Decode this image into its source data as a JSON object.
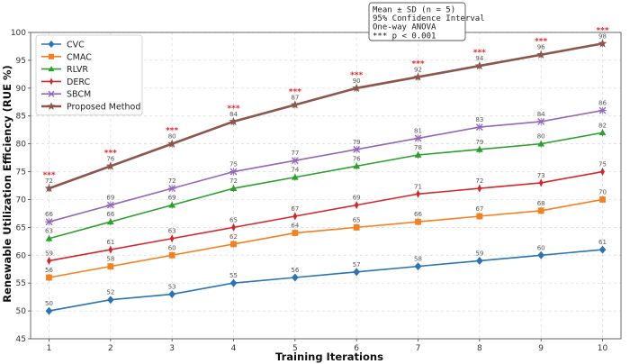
{
  "chart_data": {
    "type": "line",
    "x": [
      1,
      2,
      3,
      4,
      5,
      6,
      7,
      8,
      9,
      10
    ],
    "xlabel": "Training Iterations",
    "ylabel": "Renewable Utilization Efficiency (RUE %)",
    "xlim": [
      0.7,
      10.3
    ],
    "ylim": [
      45,
      100
    ],
    "yticks": [
      45,
      50,
      55,
      60,
      65,
      70,
      75,
      80,
      85,
      90,
      95,
      100
    ],
    "grid": true,
    "legend_position": "top-left",
    "series": [
      {
        "name": "CVC",
        "color": "#2a74b3",
        "marker": "diamond",
        "values": [
          50,
          52,
          53,
          55,
          56,
          57,
          58,
          59,
          60,
          61
        ]
      },
      {
        "name": "CMAC",
        "color": "#f58020",
        "marker": "square",
        "values": [
          56,
          58,
          60,
          62,
          64,
          65,
          66,
          67,
          68,
          70
        ]
      },
      {
        "name": "RLVR",
        "color": "#2ca02c",
        "marker": "triangle",
        "values": [
          63,
          66,
          69,
          72,
          74,
          76,
          78,
          79,
          80,
          82
        ]
      },
      {
        "name": "DERC",
        "color": "#d62728",
        "marker": "thin-diamond",
        "values": [
          59,
          61,
          63,
          65,
          67,
          69,
          71,
          72,
          73,
          75
        ]
      },
      {
        "name": "SBCM",
        "color": "#9467bd",
        "marker": "x",
        "values": [
          66,
          69,
          72,
          75,
          77,
          79,
          81,
          83,
          84,
          86
        ]
      },
      {
        "name": "Proposed Method",
        "color": "#8c564b",
        "marker": "star",
        "values": [
          72,
          76,
          80,
          84,
          87,
          90,
          92,
          94,
          96,
          98
        ]
      }
    ],
    "significance_marker": "***",
    "stats_box": [
      "Mean ± SD (n = 5)",
      "95% Confidence Interval",
      "One-way ANOVA",
      "*** p < 0.001"
    ]
  }
}
